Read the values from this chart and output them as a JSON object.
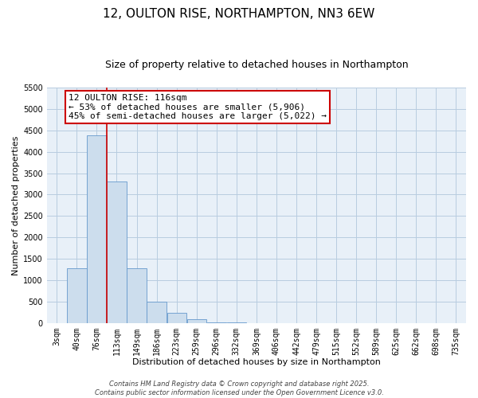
{
  "title": "12, OULTON RISE, NORTHAMPTON, NN3 6EW",
  "subtitle": "Size of property relative to detached houses in Northampton",
  "xlabel": "Distribution of detached houses by size in Northampton",
  "ylabel": "Number of detached properties",
  "bin_labels": [
    "3sqm",
    "40sqm",
    "76sqm",
    "113sqm",
    "149sqm",
    "186sqm",
    "223sqm",
    "259sqm",
    "296sqm",
    "332sqm",
    "369sqm",
    "406sqm",
    "442sqm",
    "479sqm",
    "515sqm",
    "552sqm",
    "589sqm",
    "625sqm",
    "662sqm",
    "698sqm",
    "735sqm"
  ],
  "bar_values": [
    0,
    1270,
    4380,
    3300,
    1280,
    500,
    230,
    80,
    20,
    5,
    2,
    1,
    0,
    0,
    0,
    0,
    0,
    0,
    0,
    0,
    0
  ],
  "bar_color": "#ccdded",
  "bar_edge_color": "#6699cc",
  "property_line_color": "#cc0000",
  "annotation_title": "12 OULTON RISE: 116sqm",
  "annotation_line1": "← 53% of detached houses are smaller (5,906)",
  "annotation_line2": "45% of semi-detached houses are larger (5,022) →",
  "annotation_box_color": "#cc0000",
  "ylim": [
    0,
    5500
  ],
  "yticks": [
    0,
    500,
    1000,
    1500,
    2000,
    2500,
    3000,
    3500,
    4000,
    4500,
    5000,
    5500
  ],
  "footer_line1": "Contains HM Land Registry data © Crown copyright and database right 2025.",
  "footer_line2": "Contains public sector information licensed under the Open Government Licence v3.0.",
  "bg_color": "#ffffff",
  "plot_bg_color": "#e8f0f8",
  "grid_color": "#b8cce0",
  "title_fontsize": 11,
  "subtitle_fontsize": 9,
  "axis_label_fontsize": 8,
  "tick_fontsize": 7,
  "annotation_fontsize": 8,
  "footer_fontsize": 6
}
